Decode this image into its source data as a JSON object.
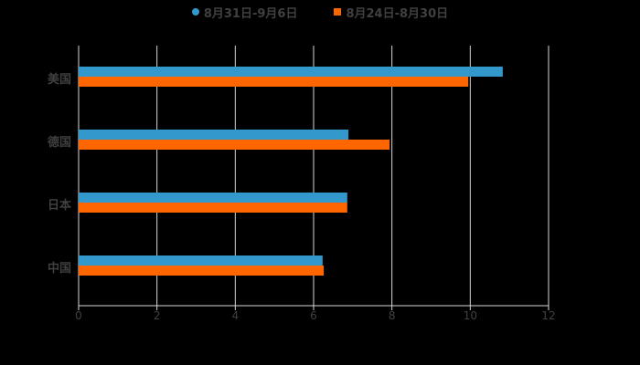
{
  "chart_data": {
    "type": "bar",
    "orientation": "horizontal",
    "title": "",
    "xlabel": "",
    "ylabel": "",
    "categories": [
      "美国",
      "德国",
      "日本",
      "中国"
    ],
    "series": [
      {
        "name": "8月31日-9月6日",
        "color": "#3399CC",
        "values": [
          10.83,
          6.89,
          6.86,
          6.23
        ]
      },
      {
        "name": "8月24日-8月30日",
        "color": "#FF6600",
        "values": [
          9.95,
          7.94,
          6.86,
          6.26
        ]
      }
    ],
    "xlim": [
      0,
      12
    ],
    "xticks": [
      "0",
      "2",
      "4",
      "6",
      "8",
      "10",
      "12"
    ],
    "grid": "vertical",
    "legend_position": "top"
  },
  "legend": {
    "items": [
      {
        "label": "8月31日-9月6日",
        "color": "#3399CC",
        "marker": "circle"
      },
      {
        "label": "8月24日-8月30日",
        "color": "#FF6600",
        "marker": "square"
      }
    ]
  },
  "colors": {
    "background": "#000000",
    "grid": "#D9D9D9",
    "text": "#404040"
  }
}
